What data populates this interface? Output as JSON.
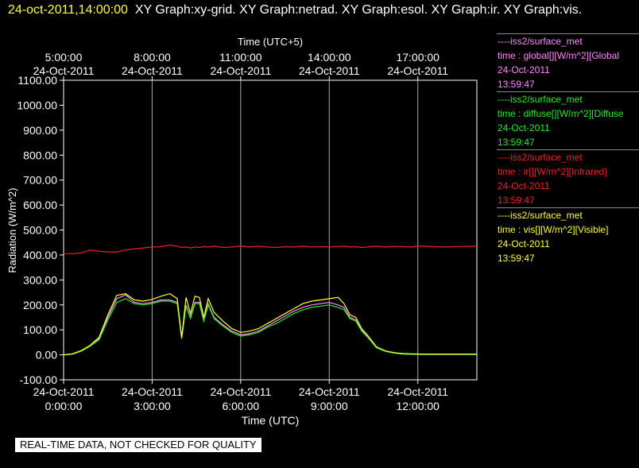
{
  "header": {
    "timestamp": "24-oct-2011,14:00:00",
    "graphs": "XY Graph:xy-grid.  XY Graph:netrad.  XY Graph:esol.  XY Graph:ir.  XY Graph:vis."
  },
  "notice": "REAL-TIME DATA, NOT CHECKED FOR QUALITY",
  "colors": {
    "global": "#ff88ff",
    "diffuse": "#22ee22",
    "ir": "#ee2222",
    "vis": "#ffff33",
    "grid": "#aaaaaa"
  },
  "legend": [
    {
      "line": "----iss2/surface_met",
      "desc": "time : global[][W/m^2][Global",
      "date": "24-Oct-2011",
      "time": "13:59:47",
      "color": "#ff88ff"
    },
    {
      "line": "----iss2/surface_met",
      "desc": "time : diffuse[][W/m^2][Diffuse",
      "date": "24-Oct-2011",
      "time": "13:59:47",
      "color": "#22ee22"
    },
    {
      "line": "----iss2/surface_met",
      "desc": "time : ir[][W/m^2][Infrared]",
      "date": "24-Oct-2011",
      "time": "13:59:47",
      "color": "#ee2222"
    },
    {
      "line": "----iss2/surface_met",
      "desc": "time : vis[][W/m^2][Visible]",
      "date": "24-Oct-2011",
      "time": "13:59:47",
      "color": "#ffff33"
    }
  ],
  "chart_data": {
    "type": "line",
    "xlabel": "Time (UTC)",
    "xlabel_top": "Time (UTC+5)",
    "ylabel": "Radiation (W/m^2)",
    "ylim": [
      -100,
      1100
    ],
    "xlim": [
      "24-Oct-2011 00:00",
      "24-Oct-2011 14:00"
    ],
    "grid": "vertical",
    "yticks": [
      "-100.00",
      "0.00",
      "100.00",
      "200.00",
      "300.00",
      "400.00",
      "500.00",
      "600.00",
      "700.00",
      "800.00",
      "900.00",
      "1000.00",
      "1100.00"
    ],
    "xticks_bottom": [
      {
        "date": "24-Oct-2011",
        "time": "0:00:00"
      },
      {
        "date": "24-Oct-2011",
        "time": "3:00:00"
      },
      {
        "date": "24-Oct-2011",
        "time": "6:00:00"
      },
      {
        "date": "24-Oct-2011",
        "time": "9:00:00"
      },
      {
        "date": "24-Oct-2011",
        "time": "12:00:00"
      }
    ],
    "xticks_top": [
      {
        "time": "5:00:00",
        "date": "24-Oct-2011"
      },
      {
        "time": "8:00:00",
        "date": "24-Oct-2011"
      },
      {
        "time": "11:00:00",
        "date": "24-Oct-2011"
      },
      {
        "time": "14:00:00",
        "date": "24-Oct-2011"
      },
      {
        "time": "17:00:00",
        "date": "24-Oct-2011"
      }
    ],
    "x_hours": [
      0,
      0.3,
      0.6,
      0.9,
      1.2,
      1.5,
      1.8,
      2.1,
      2.4,
      2.7,
      3.0,
      3.3,
      3.6,
      3.85,
      4.0,
      4.15,
      4.3,
      4.45,
      4.6,
      4.75,
      4.9,
      5.1,
      5.4,
      5.7,
      6.0,
      6.3,
      6.6,
      6.9,
      7.2,
      7.5,
      7.8,
      8.1,
      8.4,
      8.7,
      9.0,
      9.3,
      9.5,
      9.7,
      9.9,
      10.1,
      10.3,
      10.6,
      10.9,
      11.2,
      11.5,
      11.8,
      12.1,
      12.5,
      13.0,
      13.5,
      14.0
    ],
    "series": [
      {
        "name": "Infrared",
        "color": "#ee2222",
        "values": [
          405,
          405,
          408,
          420,
          415,
          412,
          412,
          420,
          425,
          428,
          432,
          433,
          440,
          435,
          430,
          432,
          428,
          432,
          430,
          433,
          432,
          435,
          430,
          432,
          436,
          432,
          435,
          432,
          430,
          433,
          432,
          435,
          432,
          433,
          432,
          434,
          435,
          432,
          433,
          430,
          432,
          435,
          432,
          434,
          433,
          432,
          436,
          433,
          432,
          434,
          435
        ]
      },
      {
        "name": "Global",
        "color": "#ff88ff",
        "values": [
          0,
          3,
          15,
          35,
          65,
          150,
          225,
          240,
          210,
          205,
          210,
          220,
          220,
          210,
          65,
          200,
          150,
          210,
          210,
          140,
          205,
          150,
          120,
          95,
          80,
          85,
          95,
          115,
          135,
          155,
          175,
          190,
          200,
          205,
          210,
          200,
          190,
          150,
          140,
          100,
          75,
          30,
          15,
          8,
          4,
          3,
          2,
          2,
          2,
          2,
          2
        ]
      },
      {
        "name": "Diffuse",
        "color": "#22ee22",
        "values": [
          0,
          3,
          15,
          35,
          60,
          140,
          210,
          225,
          205,
          200,
          205,
          215,
          215,
          205,
          65,
          195,
          145,
          205,
          205,
          135,
          200,
          145,
          115,
          90,
          75,
          80,
          90,
          110,
          125,
          145,
          165,
          180,
          190,
          195,
          200,
          190,
          180,
          145,
          135,
          95,
          70,
          28,
          14,
          7,
          3,
          2,
          2,
          2,
          2,
          2,
          2
        ]
      },
      {
        "name": "Visible",
        "color": "#ffff33",
        "values": [
          0,
          4,
          17,
          38,
          70,
          160,
          238,
          245,
          220,
          215,
          222,
          235,
          245,
          225,
          70,
          230,
          165,
          235,
          230,
          150,
          225,
          170,
          135,
          105,
          90,
          95,
          105,
          125,
          145,
          165,
          185,
          205,
          215,
          220,
          225,
          230,
          205,
          160,
          150,
          105,
          78,
          32,
          16,
          9,
          5,
          4,
          3,
          3,
          3,
          3,
          3
        ]
      }
    ]
  }
}
